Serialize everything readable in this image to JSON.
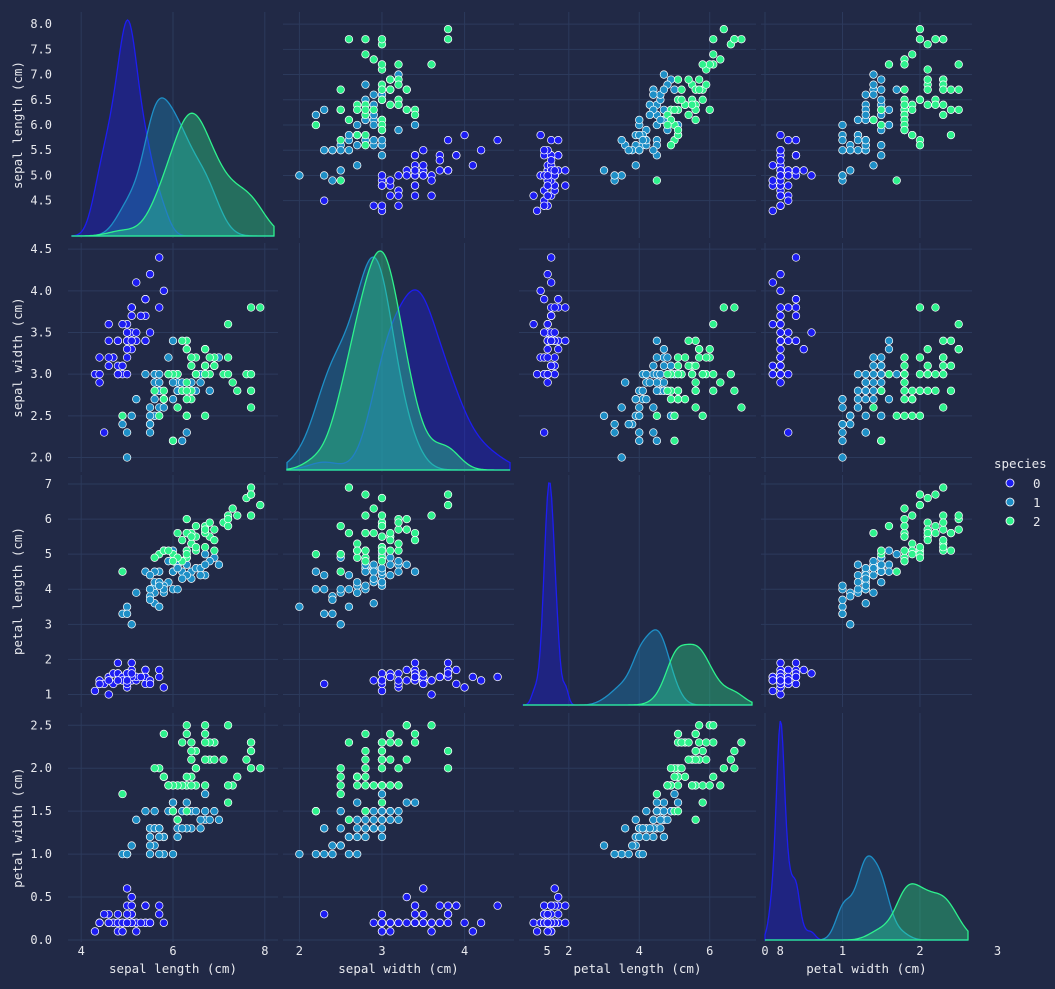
{
  "chart_data": {
    "type": "scatter",
    "kind": "pairplot",
    "variables": [
      "sepal length (cm)",
      "sepal width (cm)",
      "petal length (cm)",
      "petal width (cm)"
    ],
    "diagonal": "kde",
    "hue": "species",
    "legend": {
      "title": "species",
      "position": "right",
      "entries": [
        {
          "label": "0",
          "color": "#1d1df2"
        },
        {
          "label": "1",
          "color": "#1e8fc7"
        },
        {
          "label": "2",
          "color": "#2ef28d"
        }
      ]
    },
    "axes": [
      {
        "name": "sepal length (cm)",
        "range": [
          3.8,
          8.2
        ],
        "ticks": [
          4,
          6,
          8
        ],
        "row_ticks": [
          "4.5",
          "5.0",
          "5.5",
          "6.0",
          "6.5",
          "7.0",
          "7.5",
          "8.0"
        ]
      },
      {
        "name": "sepal width (cm)",
        "range": [
          1.85,
          4.55
        ],
        "ticks": [
          2,
          3,
          4,
          5
        ],
        "row_ticks": [
          "2.0",
          "2.5",
          "3.0",
          "3.5",
          "4.0",
          "4.5"
        ]
      },
      {
        "name": "petal length (cm)",
        "range": [
          0.7,
          7.2
        ],
        "ticks": [
          2,
          4,
          6,
          8
        ],
        "row_ticks": [
          "1",
          "2",
          "3",
          "4",
          "5",
          "6",
          "7"
        ]
      },
      {
        "name": "petal width (cm)",
        "range": [
          0.0,
          2.62
        ],
        "ticks": [
          0,
          1,
          2,
          3
        ],
        "row_ticks": [
          "0.0",
          "0.5",
          "1.0",
          "1.5",
          "2.0",
          "2.5"
        ]
      }
    ],
    "series": [
      {
        "name": "0",
        "color": "#1d1df2",
        "points": [
          [
            5.1,
            3.5,
            1.4,
            0.2
          ],
          [
            4.9,
            3.0,
            1.4,
            0.2
          ],
          [
            4.7,
            3.2,
            1.3,
            0.2
          ],
          [
            4.6,
            3.1,
            1.5,
            0.2
          ],
          [
            5.0,
            3.6,
            1.4,
            0.2
          ],
          [
            5.4,
            3.9,
            1.7,
            0.4
          ],
          [
            4.6,
            3.4,
            1.4,
            0.3
          ],
          [
            5.0,
            3.4,
            1.5,
            0.2
          ],
          [
            4.4,
            2.9,
            1.4,
            0.2
          ],
          [
            4.9,
            3.1,
            1.5,
            0.1
          ],
          [
            5.4,
            3.7,
            1.5,
            0.2
          ],
          [
            4.8,
            3.4,
            1.6,
            0.2
          ],
          [
            4.8,
            3.0,
            1.4,
            0.1
          ],
          [
            4.3,
            3.0,
            1.1,
            0.1
          ],
          [
            5.8,
            4.0,
            1.2,
            0.2
          ],
          [
            5.7,
            4.4,
            1.5,
            0.4
          ],
          [
            5.4,
            3.9,
            1.3,
            0.4
          ],
          [
            5.1,
            3.5,
            1.4,
            0.3
          ],
          [
            5.7,
            3.8,
            1.7,
            0.3
          ],
          [
            5.1,
            3.8,
            1.5,
            0.3
          ],
          [
            5.4,
            3.4,
            1.7,
            0.2
          ],
          [
            5.1,
            3.7,
            1.5,
            0.4
          ],
          [
            4.6,
            3.6,
            1.0,
            0.2
          ],
          [
            5.1,
            3.3,
            1.7,
            0.5
          ],
          [
            4.8,
            3.4,
            1.9,
            0.2
          ],
          [
            5.0,
            3.0,
            1.6,
            0.2
          ],
          [
            5.0,
            3.4,
            1.6,
            0.4
          ],
          [
            5.2,
            3.5,
            1.5,
            0.2
          ],
          [
            5.2,
            3.4,
            1.4,
            0.2
          ],
          [
            4.7,
            3.2,
            1.6,
            0.2
          ],
          [
            4.8,
            3.1,
            1.6,
            0.2
          ],
          [
            5.4,
            3.4,
            1.5,
            0.4
          ],
          [
            5.2,
            4.1,
            1.5,
            0.1
          ],
          [
            5.5,
            4.2,
            1.4,
            0.2
          ],
          [
            4.9,
            3.1,
            1.5,
            0.2
          ],
          [
            5.0,
            3.2,
            1.2,
            0.2
          ],
          [
            5.5,
            3.5,
            1.3,
            0.2
          ],
          [
            4.9,
            3.6,
            1.4,
            0.1
          ],
          [
            4.4,
            3.0,
            1.3,
            0.2
          ],
          [
            5.1,
            3.4,
            1.5,
            0.2
          ],
          [
            5.0,
            3.5,
            1.3,
            0.3
          ],
          [
            4.5,
            2.3,
            1.3,
            0.3
          ],
          [
            4.4,
            3.2,
            1.3,
            0.2
          ],
          [
            5.0,
            3.5,
            1.6,
            0.6
          ],
          [
            5.1,
            3.8,
            1.9,
            0.4
          ],
          [
            4.8,
            3.0,
            1.4,
            0.3
          ],
          [
            5.1,
            3.8,
            1.6,
            0.2
          ],
          [
            4.6,
            3.2,
            1.4,
            0.2
          ],
          [
            5.3,
            3.7,
            1.5,
            0.2
          ],
          [
            5.0,
            3.3,
            1.4,
            0.2
          ]
        ]
      },
      {
        "name": "1",
        "color": "#1e8fc7",
        "points": [
          [
            7.0,
            3.2,
            4.7,
            1.4
          ],
          [
            6.4,
            3.2,
            4.5,
            1.5
          ],
          [
            6.9,
            3.1,
            4.9,
            1.5
          ],
          [
            5.5,
            2.3,
            4.0,
            1.3
          ],
          [
            6.5,
            2.8,
            4.6,
            1.5
          ],
          [
            5.7,
            2.8,
            4.5,
            1.3
          ],
          [
            6.3,
            3.3,
            4.7,
            1.6
          ],
          [
            4.9,
            2.4,
            3.3,
            1.0
          ],
          [
            6.6,
            2.9,
            4.6,
            1.3
          ],
          [
            5.2,
            2.7,
            3.9,
            1.4
          ],
          [
            5.0,
            2.0,
            3.5,
            1.0
          ],
          [
            5.9,
            3.0,
            4.2,
            1.5
          ],
          [
            6.0,
            2.2,
            4.0,
            1.0
          ],
          [
            6.1,
            2.9,
            4.7,
            1.4
          ],
          [
            5.6,
            2.9,
            3.6,
            1.3
          ],
          [
            6.7,
            3.1,
            4.4,
            1.4
          ],
          [
            5.6,
            3.0,
            4.5,
            1.5
          ],
          [
            5.8,
            2.7,
            4.1,
            1.0
          ],
          [
            6.2,
            2.2,
            4.5,
            1.5
          ],
          [
            5.6,
            2.5,
            3.9,
            1.1
          ],
          [
            5.9,
            3.2,
            4.8,
            1.8
          ],
          [
            6.1,
            2.8,
            4.0,
            1.3
          ],
          [
            6.3,
            2.5,
            4.9,
            1.5
          ],
          [
            6.1,
            2.8,
            4.7,
            1.2
          ],
          [
            6.4,
            2.9,
            4.3,
            1.3
          ],
          [
            6.6,
            3.0,
            4.4,
            1.4
          ],
          [
            6.8,
            2.8,
            4.8,
            1.4
          ],
          [
            6.7,
            3.0,
            5.0,
            1.7
          ],
          [
            6.0,
            2.9,
            4.5,
            1.5
          ],
          [
            5.7,
            2.6,
            3.5,
            1.0
          ],
          [
            5.5,
            2.4,
            3.8,
            1.1
          ],
          [
            5.5,
            2.4,
            3.7,
            1.0
          ],
          [
            5.8,
            2.7,
            3.9,
            1.2
          ],
          [
            6.0,
            2.7,
            5.1,
            1.6
          ],
          [
            5.4,
            3.0,
            4.5,
            1.5
          ],
          [
            6.0,
            3.4,
            4.5,
            1.6
          ],
          [
            6.7,
            3.1,
            4.7,
            1.5
          ],
          [
            6.3,
            2.3,
            4.4,
            1.3
          ],
          [
            5.6,
            3.0,
            4.1,
            1.3
          ],
          [
            5.5,
            2.5,
            4.0,
            1.3
          ],
          [
            5.5,
            2.6,
            4.4,
            1.2
          ],
          [
            6.1,
            3.0,
            4.6,
            1.4
          ],
          [
            5.8,
            2.6,
            4.0,
            1.2
          ],
          [
            5.0,
            2.3,
            3.3,
            1.0
          ],
          [
            5.6,
            2.7,
            4.2,
            1.3
          ],
          [
            5.7,
            3.0,
            4.2,
            1.2
          ],
          [
            5.7,
            2.9,
            4.2,
            1.3
          ],
          [
            6.2,
            2.9,
            4.3,
            1.3
          ],
          [
            5.1,
            2.5,
            3.0,
            1.1
          ],
          [
            5.7,
            2.8,
            4.1,
            1.3
          ]
        ]
      },
      {
        "name": "2",
        "color": "#2ef28d",
        "points": [
          [
            6.3,
            3.3,
            6.0,
            2.5
          ],
          [
            5.8,
            2.7,
            5.1,
            1.9
          ],
          [
            7.1,
            3.0,
            5.9,
            2.1
          ],
          [
            6.3,
            2.9,
            5.6,
            1.8
          ],
          [
            6.5,
            3.0,
            5.8,
            2.2
          ],
          [
            7.6,
            3.0,
            6.6,
            2.1
          ],
          [
            4.9,
            2.5,
            4.5,
            1.7
          ],
          [
            7.3,
            2.9,
            6.3,
            1.8
          ],
          [
            6.7,
            2.5,
            5.8,
            1.8
          ],
          [
            7.2,
            3.6,
            6.1,
            2.5
          ],
          [
            6.5,
            3.2,
            5.1,
            2.0
          ],
          [
            6.4,
            2.7,
            5.3,
            1.9
          ],
          [
            6.8,
            3.0,
            5.5,
            2.1
          ],
          [
            5.7,
            2.5,
            5.0,
            2.0
          ],
          [
            5.8,
            2.8,
            5.1,
            2.4
          ],
          [
            6.4,
            3.2,
            5.3,
            2.3
          ],
          [
            6.5,
            3.0,
            5.5,
            1.8
          ],
          [
            7.7,
            3.8,
            6.7,
            2.2
          ],
          [
            7.7,
            2.6,
            6.9,
            2.3
          ],
          [
            6.0,
            2.2,
            5.0,
            1.5
          ],
          [
            6.9,
            3.2,
            5.7,
            2.3
          ],
          [
            5.6,
            2.8,
            4.9,
            2.0
          ],
          [
            7.7,
            2.8,
            6.7,
            2.0
          ],
          [
            6.3,
            2.7,
            4.9,
            1.8
          ],
          [
            6.7,
            3.3,
            5.7,
            2.1
          ],
          [
            7.2,
            3.2,
            6.0,
            1.8
          ],
          [
            6.2,
            2.8,
            4.8,
            1.8
          ],
          [
            6.1,
            3.0,
            4.9,
            1.8
          ],
          [
            6.4,
            2.8,
            5.6,
            2.1
          ],
          [
            7.2,
            3.0,
            5.8,
            1.6
          ],
          [
            7.4,
            2.8,
            6.1,
            1.9
          ],
          [
            7.9,
            3.8,
            6.4,
            2.0
          ],
          [
            6.4,
            2.8,
            5.6,
            2.2
          ],
          [
            6.3,
            2.8,
            5.1,
            1.5
          ],
          [
            6.1,
            2.6,
            5.6,
            1.4
          ],
          [
            7.7,
            3.0,
            6.1,
            2.3
          ],
          [
            6.3,
            3.4,
            5.6,
            2.4
          ],
          [
            6.4,
            3.1,
            5.5,
            1.8
          ],
          [
            6.0,
            3.0,
            4.8,
            1.8
          ],
          [
            6.9,
            3.1,
            5.4,
            2.1
          ],
          [
            6.7,
            3.1,
            5.6,
            2.4
          ],
          [
            6.9,
            3.1,
            5.1,
            2.3
          ],
          [
            5.8,
            2.7,
            5.1,
            1.9
          ],
          [
            6.8,
            3.2,
            5.9,
            2.3
          ],
          [
            6.7,
            3.3,
            5.7,
            2.5
          ],
          [
            6.7,
            3.0,
            5.2,
            2.3
          ],
          [
            6.3,
            2.5,
            5.0,
            1.9
          ],
          [
            6.5,
            3.0,
            5.2,
            2.0
          ],
          [
            6.2,
            3.4,
            5.4,
            2.3
          ],
          [
            5.9,
            3.0,
            5.1,
            1.8
          ]
        ]
      }
    ]
  }
}
